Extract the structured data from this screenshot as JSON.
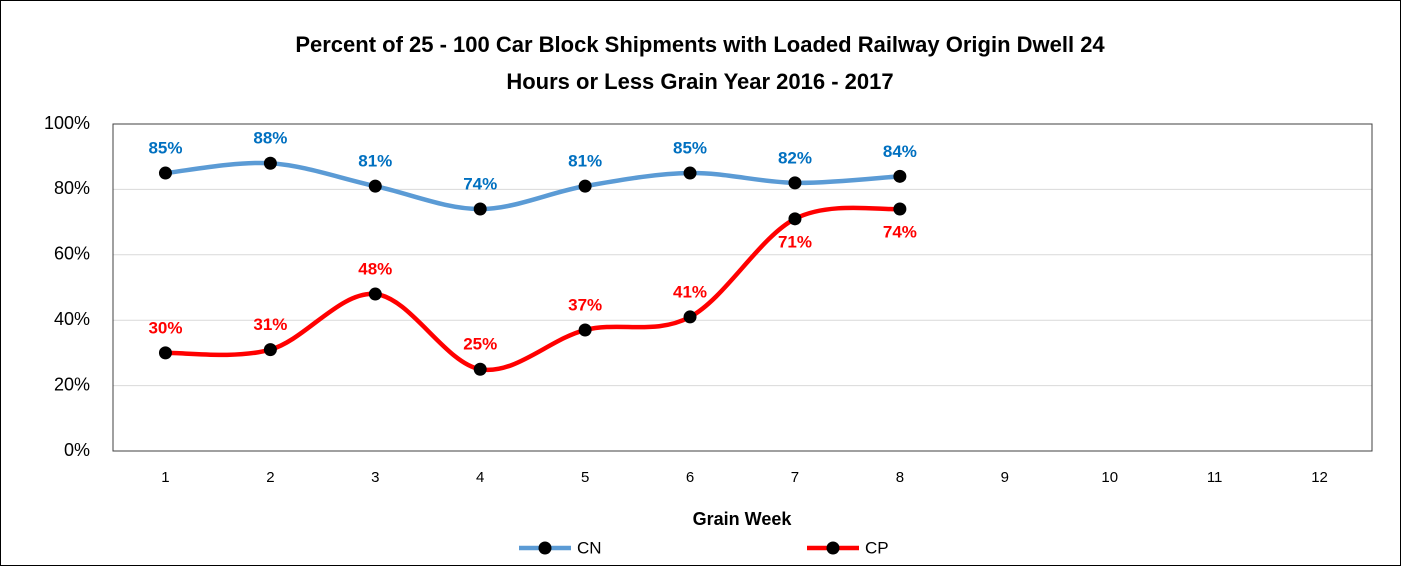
{
  "chart_data": {
    "type": "line",
    "title": "Percent of 25 - 100 Car Block Shipments with Loaded Railway Origin Dwell 24",
    "subtitle": "Hours or Less Grain Year 2016 - 2017",
    "x_label": "Grain Week",
    "categories": [
      "1",
      "2",
      "3",
      "4",
      "5",
      "6",
      "7",
      "8",
      "9",
      "10",
      "11",
      "12"
    ],
    "series": [
      {
        "name": "CN",
        "color": "#5b9bd5",
        "label_color": "#0070c0",
        "values": [
          85,
          88,
          81,
          74,
          81,
          85,
          82,
          84,
          null,
          null,
          null,
          null
        ],
        "value_labels": [
          "85%",
          "88%",
          "81%",
          "74%",
          "81%",
          "85%",
          "82%",
          "84%",
          null,
          null,
          null,
          null
        ]
      },
      {
        "name": "CP",
        "color": "#ff0000",
        "label_color": "#ff0000",
        "values": [
          30,
          31,
          48,
          25,
          37,
          41,
          71,
          74,
          null,
          null,
          null,
          null
        ],
        "value_labels": [
          "30%",
          "31%",
          "48%",
          "25%",
          "37%",
          "41%",
          "71%",
          "74%",
          null,
          null,
          null,
          null
        ]
      }
    ],
    "ylim": [
      0,
      100
    ],
    "yticks": [
      {
        "value": 0,
        "label": "0%"
      },
      {
        "value": 20,
        "label": "20%"
      },
      {
        "value": 40,
        "label": "40%"
      },
      {
        "value": 60,
        "label": "60%"
      },
      {
        "value": 80,
        "label": "80%"
      },
      {
        "value": 100,
        "label": "100%"
      }
    ],
    "grid": true,
    "smooth": true,
    "legend": "bottom"
  }
}
